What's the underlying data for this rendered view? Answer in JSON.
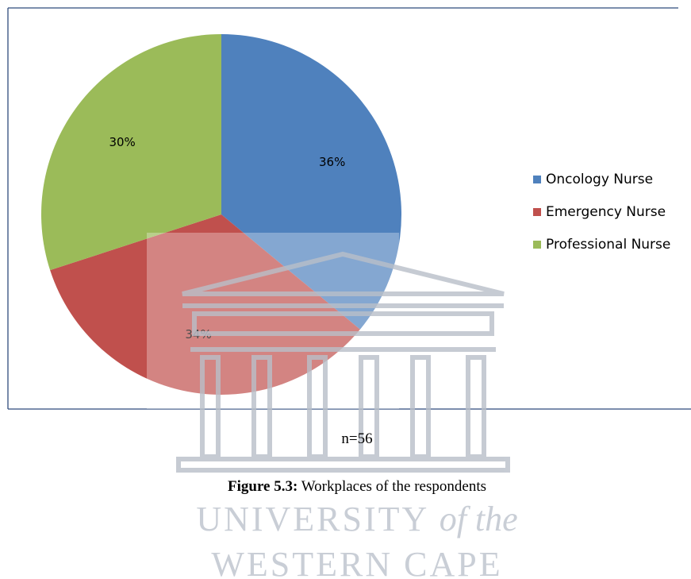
{
  "chart_data": {
    "type": "pie",
    "categories": [
      "Oncology Nurse",
      "Emergency Nurse",
      "Professional Nurse"
    ],
    "values": [
      36,
      34,
      30
    ],
    "value_labels": [
      "36%",
      "34%",
      "30%"
    ],
    "colors": [
      "#4f81bd",
      "#c0504d",
      "#9bbb59"
    ],
    "legend": "right"
  },
  "caption": {
    "n": "n=56",
    "label": "Figure 5.3:",
    "text": "Workplaces of the respondents"
  },
  "watermark": {
    "line1": [
      "UNIVERSITY",
      "of the"
    ],
    "line2": "WESTERN CAPE"
  }
}
